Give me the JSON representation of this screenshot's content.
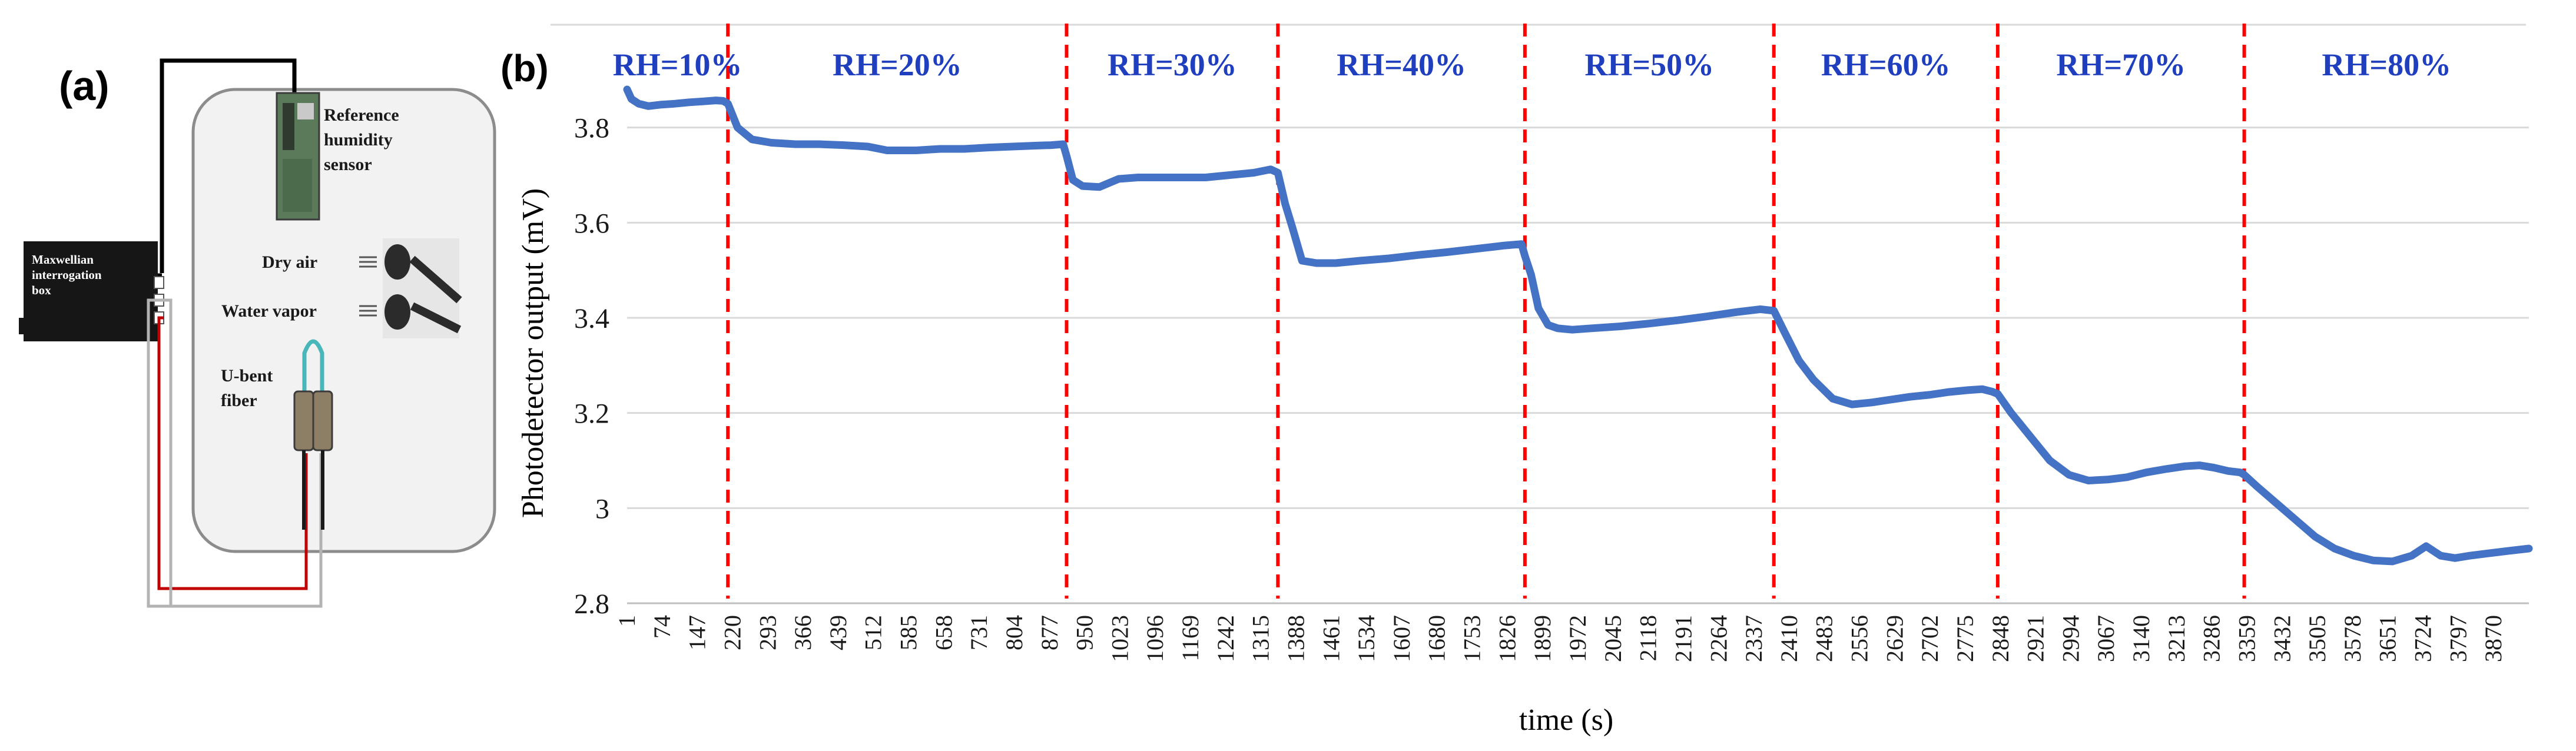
{
  "panel_a": {
    "label": "(a)",
    "box_label": "Maxwellian interrogation box",
    "box_label_line1": "Maxwellian",
    "box_label_line2": "interrogation",
    "box_label_line3": "box",
    "ref_sensor_line1": "Reference",
    "ref_sensor_line2": "humidity",
    "ref_sensor_line3": "sensor",
    "dry_air": "Dry air",
    "water_vapor": "Water vapor",
    "fiber_line1": "U-bent",
    "fiber_line2": "fiber"
  },
  "panel_b": {
    "label": "(b)"
  },
  "colors": {
    "line": "#4472c4",
    "rh_label": "#1f3fbf",
    "divider": "#ff0000",
    "grid": "#d9d9d9",
    "laser_line": "#c00000"
  },
  "chart_data": {
    "type": "line",
    "title": "",
    "xlabel": "time (s)",
    "ylabel": "Photodetector output (mV)",
    "ylim": [
      2.8,
      4.0
    ],
    "yticks": [
      "2.8",
      "3",
      "3.2",
      "3.4",
      "3.6",
      "3.8"
    ],
    "ytick_values": [
      2.8,
      3.0,
      3.2,
      3.4,
      3.6,
      3.8
    ],
    "xlim": [
      1,
      3943
    ],
    "xticks": [
      "1",
      "74",
      "147",
      "220",
      "293",
      "366",
      "439",
      "512",
      "585",
      "658",
      "731",
      "804",
      "877",
      "950",
      "1023",
      "1096",
      "1169",
      "1242",
      "1315",
      "1388",
      "1461",
      "1534",
      "1607",
      "1680",
      "1753",
      "1826",
      "1899",
      "1972",
      "2045",
      "2118",
      "2191",
      "2264",
      "2337",
      "2410",
      "2483",
      "2556",
      "2629",
      "2702",
      "2775",
      "2848",
      "2921",
      "2994",
      "3067",
      "3140",
      "3213",
      "3286",
      "3359",
      "3432",
      "3505",
      "3578",
      "3651",
      "3724",
      "3797",
      "3870"
    ],
    "grid": "horizontal",
    "regions": [
      {
        "label": "RH=10%",
        "start": 1,
        "end": 210
      },
      {
        "label": "RH=20%",
        "start": 210,
        "end": 912
      },
      {
        "label": "RH=30%",
        "start": 912,
        "end": 1350
      },
      {
        "label": "RH=40%",
        "start": 1350,
        "end": 1862
      },
      {
        "label": "RH=50%",
        "start": 1862,
        "end": 2378
      },
      {
        "label": "RH=60%",
        "start": 2378,
        "end": 2842
      },
      {
        "label": "RH=70%",
        "start": 2842,
        "end": 3353
      },
      {
        "label": "RH=80%",
        "start": 3353,
        "end": 3943
      }
    ],
    "dividers": [
      210,
      912,
      1350,
      1862,
      2378,
      2842,
      3353
    ],
    "series": [
      {
        "x": [
          1,
          10,
          25,
          45,
          70,
          100,
          130,
          160,
          185,
          200,
          210,
          230,
          260,
          300,
          350,
          400,
          450,
          500,
          540,
          600,
          650,
          700,
          750,
          800,
          850,
          880,
          905,
          912,
          925,
          945,
          980,
          1020,
          1060,
          1100,
          1150,
          1200,
          1250,
          1300,
          1335,
          1350,
          1365,
          1380,
          1400,
          1430,
          1470,
          1520,
          1580,
          1640,
          1700,
          1760,
          1820,
          1855,
          1862,
          1875,
          1890,
          1910,
          1930,
          1960,
          2000,
          2060,
          2120,
          2180,
          2240,
          2300,
          2350,
          2378,
          2400,
          2430,
          2460,
          2500,
          2540,
          2580,
          2620,
          2660,
          2700,
          2740,
          2780,
          2810,
          2830,
          2842,
          2870,
          2910,
          2950,
          2990,
          3030,
          3070,
          3110,
          3150,
          3190,
          3230,
          3260,
          3290,
          3320,
          3345,
          3353,
          3380,
          3420,
          3460,
          3500,
          3540,
          3580,
          3620,
          3660,
          3700,
          3730,
          3760,
          3790,
          3820,
          3860,
          3900,
          3943
        ],
        "y": [
          3.88,
          3.86,
          3.85,
          3.845,
          3.848,
          3.85,
          3.853,
          3.855,
          3.857,
          3.856,
          3.85,
          3.8,
          3.775,
          3.768,
          3.765,
          3.765,
          3.763,
          3.76,
          3.752,
          3.752,
          3.755,
          3.755,
          3.758,
          3.76,
          3.762,
          3.763,
          3.765,
          3.74,
          3.69,
          3.677,
          3.675,
          3.692,
          3.695,
          3.695,
          3.695,
          3.695,
          3.7,
          3.705,
          3.712,
          3.705,
          3.64,
          3.59,
          3.52,
          3.515,
          3.515,
          3.52,
          3.525,
          3.532,
          3.538,
          3.545,
          3.552,
          3.555,
          3.53,
          3.49,
          3.42,
          3.385,
          3.378,
          3.375,
          3.378,
          3.382,
          3.388,
          3.395,
          3.403,
          3.412,
          3.418,
          3.415,
          3.37,
          3.31,
          3.27,
          3.23,
          3.218,
          3.222,
          3.228,
          3.234,
          3.238,
          3.244,
          3.248,
          3.25,
          3.245,
          3.24,
          3.2,
          3.15,
          3.1,
          3.07,
          3.058,
          3.06,
          3.065,
          3.075,
          3.082,
          3.088,
          3.09,
          3.085,
          3.078,
          3.075,
          3.07,
          3.045,
          3.01,
          2.975,
          2.94,
          2.915,
          2.9,
          2.89,
          2.888,
          2.9,
          2.92,
          2.9,
          2.895,
          2.9,
          2.905,
          2.91,
          2.915
        ]
      }
    ]
  }
}
